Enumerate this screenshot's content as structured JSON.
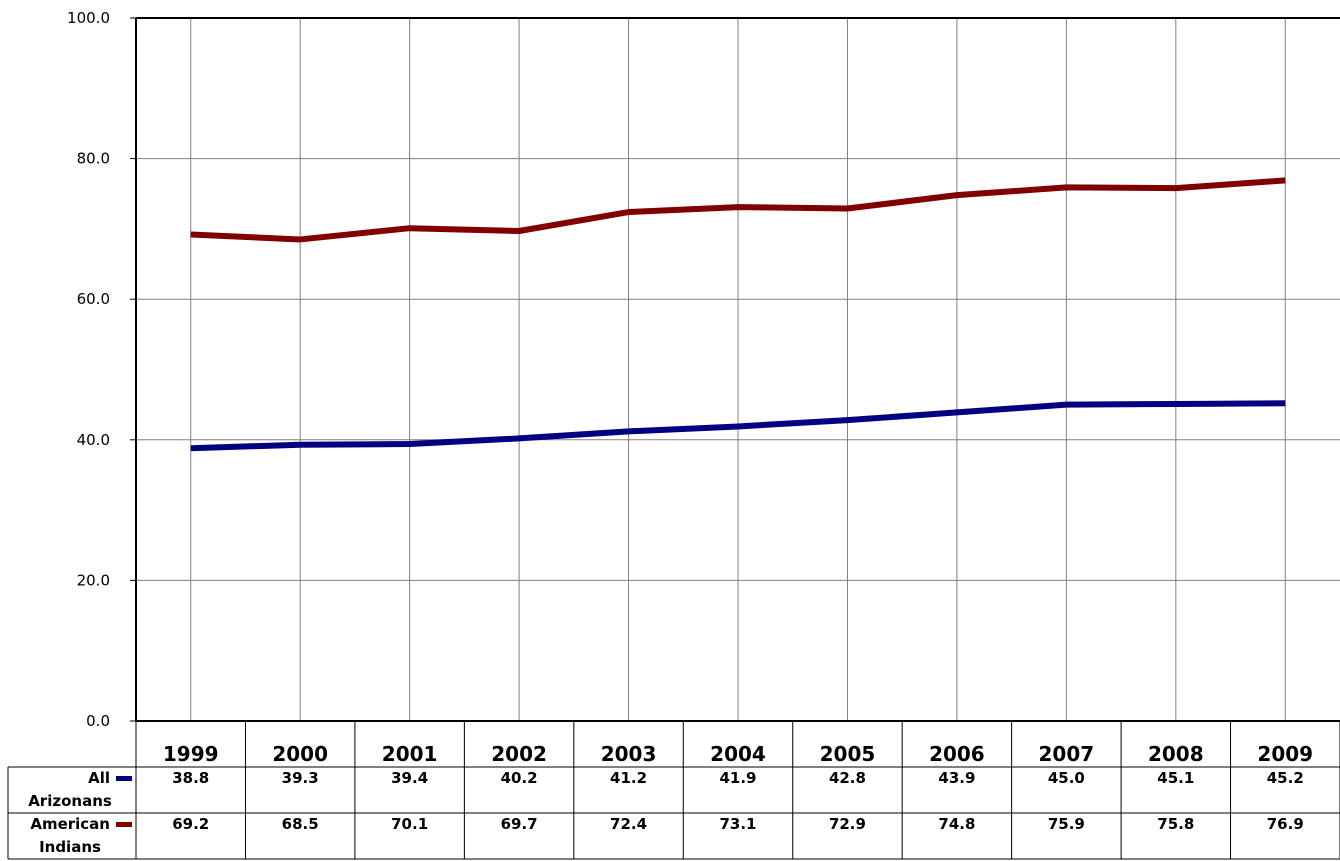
{
  "chart_data": {
    "type": "line",
    "title": "",
    "xlabel": "",
    "ylabel": "",
    "categories": [
      "1999",
      "2000",
      "2001",
      "2002",
      "2003",
      "2004",
      "2005",
      "2006",
      "2007",
      "2008",
      "2009"
    ],
    "ylim": [
      0,
      100
    ],
    "yticks": [
      "0.0",
      "20.0",
      "40.0",
      "60.0",
      "80.0",
      "100.0"
    ],
    "grid": true,
    "legend": "data-table",
    "series": [
      {
        "name_lines": [
          "All",
          "Arizonans"
        ],
        "color": "#000080",
        "values": [
          38.8,
          39.3,
          39.4,
          40.2,
          41.2,
          41.9,
          42.8,
          43.9,
          45.0,
          45.1,
          45.2
        ],
        "labels": [
          "38.8",
          "39.3",
          "39.4",
          "40.2",
          "41.2",
          "41.9",
          "42.8",
          "43.9",
          "45.0",
          "45.1",
          "45.2"
        ]
      },
      {
        "name_lines": [
          "American",
          "Indians"
        ],
        "color": "#800000",
        "values": [
          69.2,
          68.5,
          70.1,
          69.7,
          72.4,
          73.1,
          72.9,
          74.8,
          75.9,
          75.8,
          76.9
        ],
        "labels": [
          "69.2",
          "68.5",
          "70.1",
          "69.7",
          "72.4",
          "73.1",
          "72.9",
          "74.8",
          "75.9",
          "75.8",
          "76.9"
        ]
      }
    ]
  }
}
